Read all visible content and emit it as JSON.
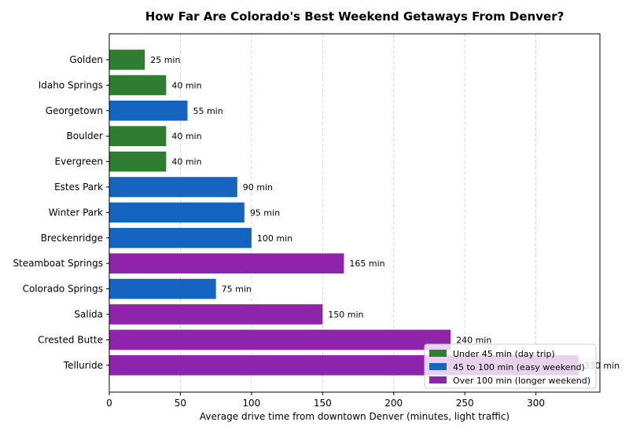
{
  "chart_data": {
    "type": "bar",
    "orientation": "horizontal",
    "title": "How Far Are Colorado's Best Weekend Getaways From Denver?",
    "xlabel": "Average drive time from downtown Denver (minutes, light traffic)",
    "ylabel": "",
    "xlim": [
      0,
      345
    ],
    "xticks": [
      0,
      50,
      100,
      150,
      200,
      250,
      300
    ],
    "grid": "vertical dashed",
    "legend_position": "bottom-right",
    "categories": [
      "Golden",
      "Idaho Springs",
      "Georgetown",
      "Boulder",
      "Evergreen",
      "Estes Park",
      "Winter Park",
      "Breckenridge",
      "Steamboat Springs",
      "Colorado Springs",
      "Salida",
      "Crested Butte",
      "Telluride"
    ],
    "values": [
      25,
      40,
      55,
      40,
      40,
      90,
      95,
      100,
      165,
      75,
      150,
      240,
      330
    ],
    "value_labels": [
      "25 min",
      "40 min",
      "55 min",
      "40 min",
      "40 min",
      "90 min",
      "95 min",
      "100 min",
      "165 min",
      "75 min",
      "150 min",
      "240 min",
      "330 min"
    ],
    "groups": [
      "short",
      "short",
      "medium",
      "short",
      "short",
      "medium",
      "medium",
      "medium",
      "long",
      "medium",
      "long",
      "long",
      "long"
    ],
    "legend": [
      {
        "key": "short",
        "label": "Under 45 min (day trip)",
        "color": "#2e7d32"
      },
      {
        "key": "medium",
        "label": "45 to 100 min (easy weekend)",
        "color": "#1565c0"
      },
      {
        "key": "long",
        "label": "Over 100 min (longer weekend)",
        "color": "#8e24aa"
      }
    ]
  }
}
